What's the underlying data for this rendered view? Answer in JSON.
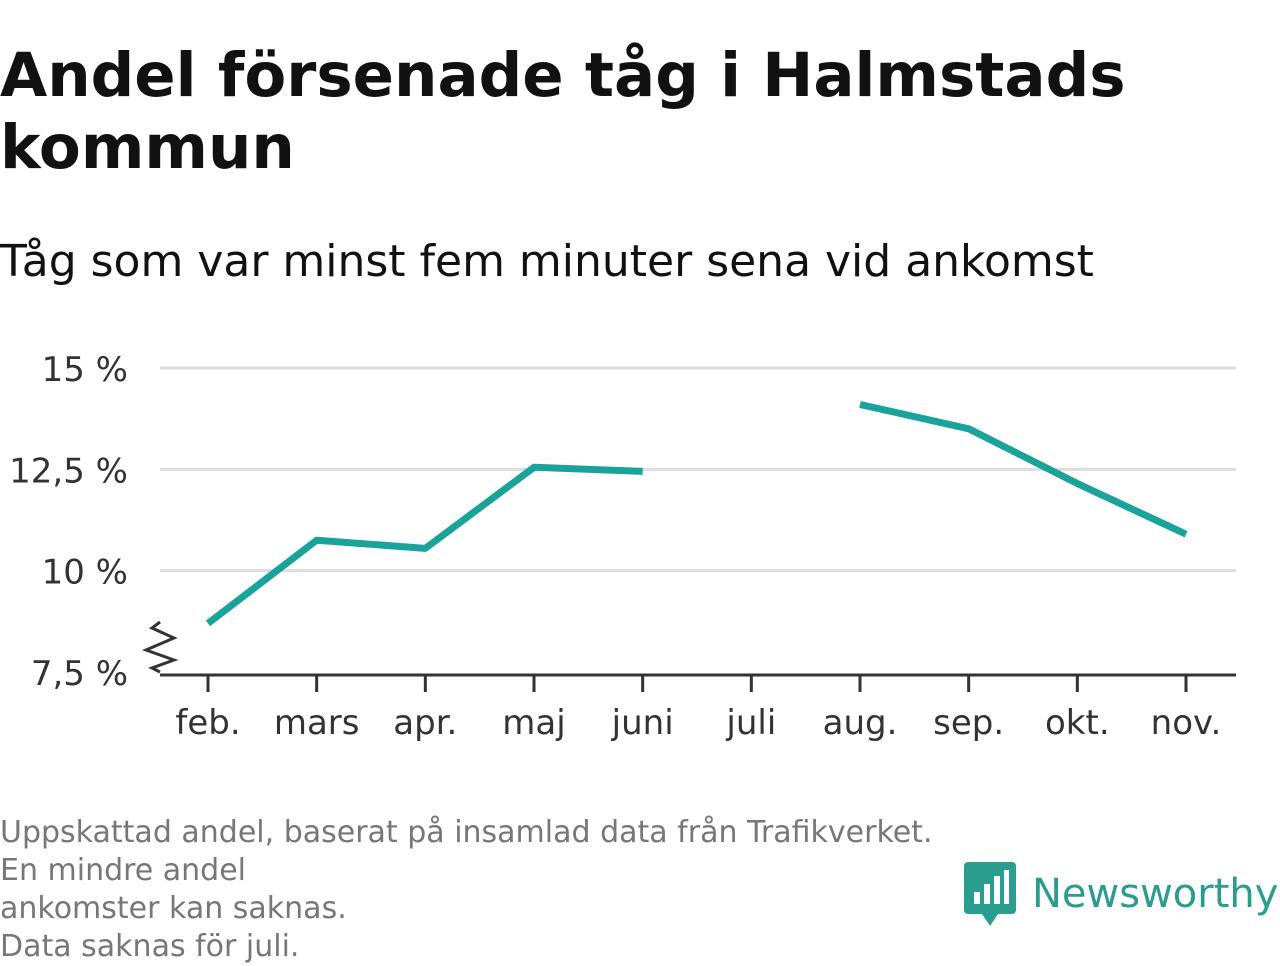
{
  "chart_data": {
    "type": "line",
    "title": "Andel försenade tåg i Halmstads kommun",
    "subtitle": "Tåg som var minst fem minuter sena vid ankomst",
    "categories": [
      "feb.",
      "mars",
      "apr.",
      "maj",
      "juni",
      "juli",
      "aug.",
      "sep.",
      "okt.",
      "nov."
    ],
    "series": [
      {
        "values": [
          8.7,
          10.75,
          10.55,
          12.55,
          12.45,
          null,
          14.1,
          13.5,
          12.15,
          10.9
        ],
        "color": "#1aa39a"
      }
    ],
    "yticks": [
      7.5,
      10,
      12.5,
      15
    ],
    "ytick_labels": [
      "7,5 %",
      "10 %",
      "12,5 %",
      "15 %"
    ],
    "ylim": [
      7.5,
      15
    ],
    "xlabel": "",
    "ylabel": "",
    "grid": true,
    "axis_break": true,
    "footnote": [
      "Uppskattad andel, baserat på insamlad data från Trafikverket. En mindre andel",
      "ankomster kan saknas.",
      "Data saknas för juli."
    ],
    "brand": "Newsworthy",
    "colors": {
      "line": "#1aa39a",
      "brand": "#2a9d8f",
      "grid": "#dddddd",
      "axis": "#333333",
      "footnote": "#777777"
    }
  }
}
